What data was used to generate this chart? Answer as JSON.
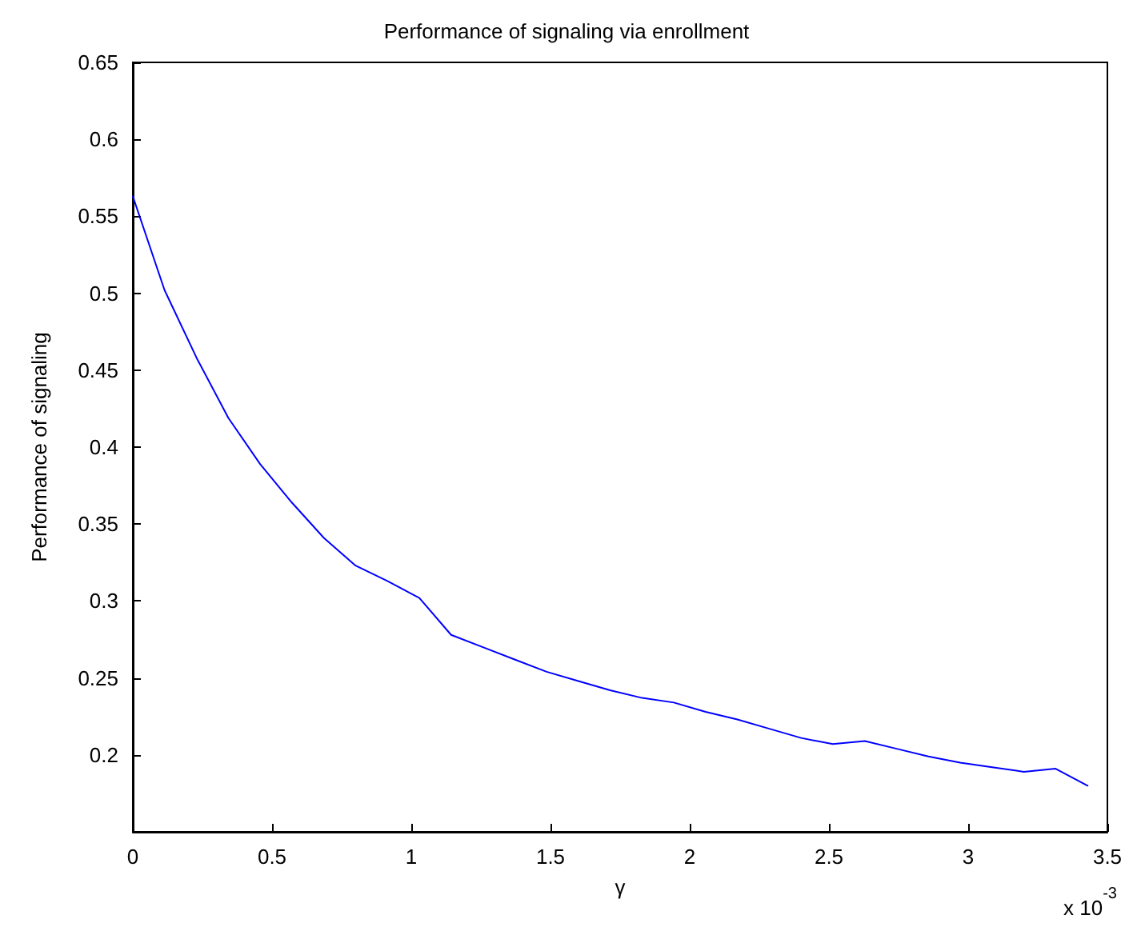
{
  "chart_data": {
    "type": "line",
    "title": "Performance of signaling via enrollment",
    "xlabel": "γ",
    "ylabel": "Performance of signaling",
    "annotations": [
      "x 10$^{-3}$"
    ],
    "x": [
      0,
      0.114,
      0.229,
      0.343,
      0.457,
      0.571,
      0.686,
      0.8,
      0.914,
      1.029,
      1.143,
      1.257,
      1.371,
      1.486,
      1.6,
      1.714,
      1.829,
      1.943,
      2.057,
      2.171,
      2.286,
      2.4,
      2.514,
      2.629,
      2.743,
      2.857,
      2.971,
      3.086,
      3.2,
      3.314,
      3.429
    ],
    "series": [
      {
        "color": "#0000ff",
        "values": [
          0.563,
          0.502,
          0.458,
          0.419,
          0.389,
          0.364,
          0.341,
          0.323,
          0.313,
          0.302,
          0.278,
          0.27,
          0.262,
          0.254,
          0.248,
          0.242,
          0.237,
          0.234,
          0.228,
          0.223,
          0.217,
          0.211,
          0.207,
          0.209,
          0.204,
          0.199,
          0.195,
          0.192,
          0.189,
          0.191,
          0.18
        ]
      }
    ],
    "xlim": [
      0,
      3.5
    ],
    "xticks": [
      0,
      0.5,
      1,
      1.5,
      2,
      2.5,
      3,
      3.5
    ],
    "ylim": [
      0.15,
      0.65
    ],
    "yticks": [
      0.2,
      0.25,
      0.3,
      0.35,
      0.4,
      0.45,
      0.5,
      0.55,
      0.6,
      0.65
    ],
    "grid": false,
    "marker": "none",
    "line_style": "solid"
  }
}
